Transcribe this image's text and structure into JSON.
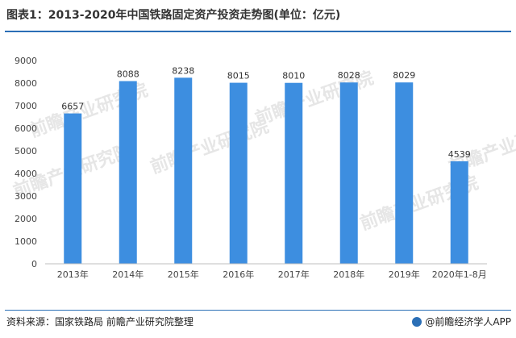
{
  "title": "图表1：2013-2020年中国铁路固定资产投资走势图(单位：亿元)",
  "source": "资料来源：国家铁路局  前瞻产业研究院整理",
  "brand": "@前瞻经济学人APP",
  "watermark": "前瞻产业研究院",
  "chart_data": {
    "type": "bar",
    "title": "图表1：2013-2020年中国铁路固定资产投资走势图(单位：亿元)",
    "categories": [
      "2013年",
      "2014年",
      "2015年",
      "2016年",
      "2017年",
      "2018年",
      "2019年",
      "2020年1-8月"
    ],
    "values": [
      6657,
      8088,
      8238,
      8015,
      8010,
      8028,
      8029,
      4539
    ],
    "data_labels": [
      "6657",
      "8088",
      "8238",
      "8015",
      "8010",
      "8028",
      "8029",
      "4539"
    ],
    "ylim": [
      0,
      9000
    ],
    "yticks": [
      0,
      1000,
      2000,
      3000,
      4000,
      5000,
      6000,
      7000,
      8000,
      9000
    ],
    "ytick_labels": [
      "0",
      "1000",
      "2000",
      "3000",
      "4000",
      "5000",
      "6000",
      "7000",
      "8000",
      "9000"
    ],
    "grid": false,
    "legend": "none",
    "bar_color": "#3d8ee0"
  }
}
